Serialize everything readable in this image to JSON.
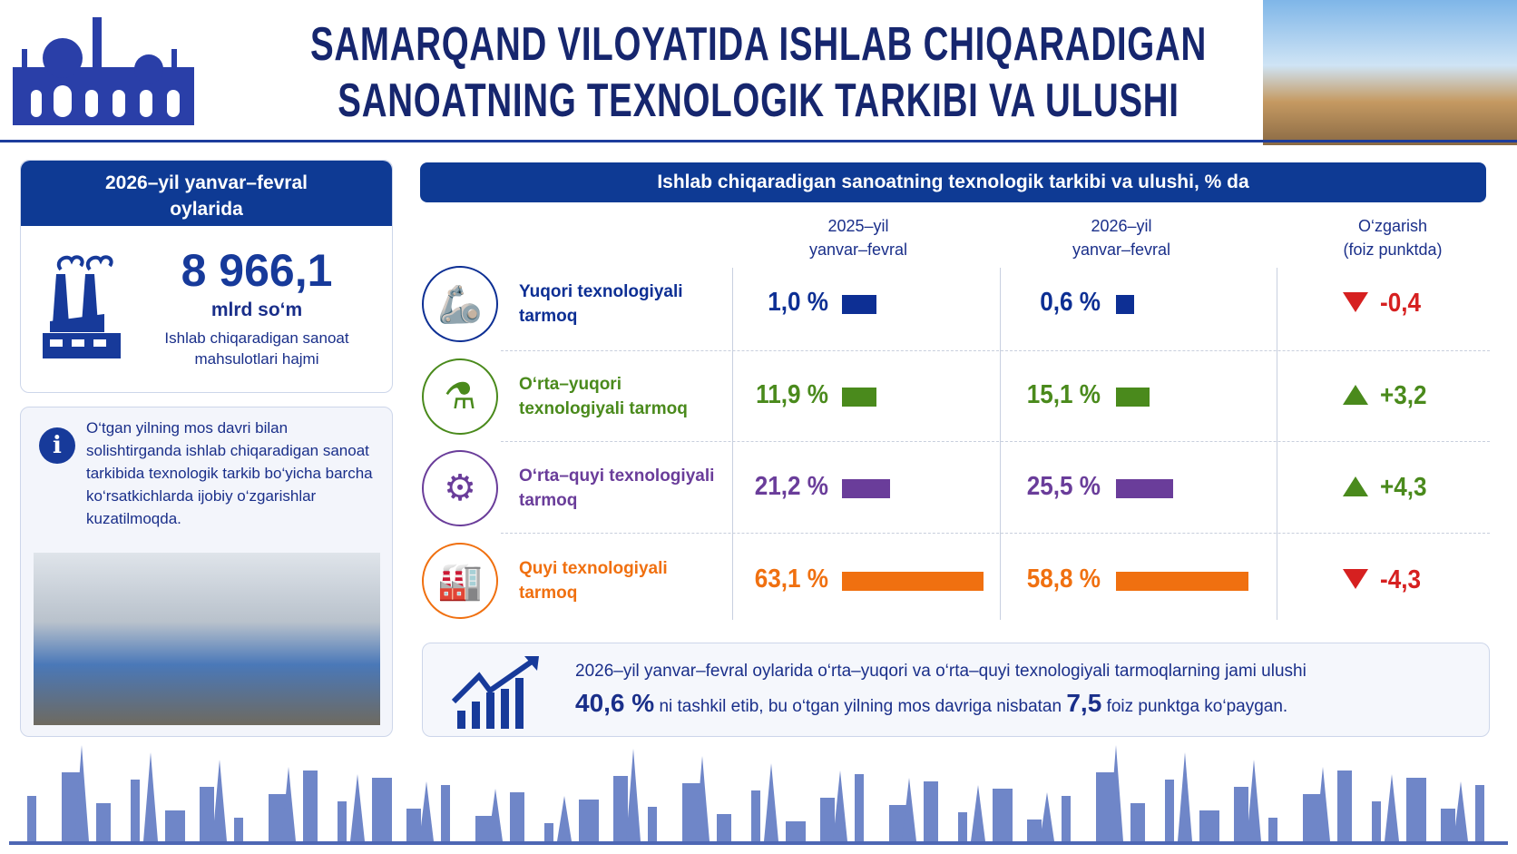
{
  "title": {
    "line1": "SAMARQAND VILOYATIDA ISHLAB CHIQARADIGAN",
    "line2": "SANOATNING TEXNOLOGIK TARKIBI VA ULUSHI"
  },
  "summary": {
    "header": "2026–yil yanvar–fevral oylarida",
    "value": "8 966,1",
    "unit": "mlrd so‘m",
    "caption": "Ishlab chiqaradigan sanoat mahsulotlari hajmi"
  },
  "info": {
    "text": "O‘tgan yilning mos davri bilan solishtirganda ishlab chiqaradigan sanoat tarkibida texnologik tarkib bo‘yicha barcha ko‘rsatkichlarda ijobiy o‘zgarishlar kuzatilmoqda."
  },
  "table": {
    "heading": "Ishlab chiqaradigan sanoatning texnologik tarkibi va ulushi, % da",
    "columns": [
      {
        "l1": "2025–yil",
        "l2": "yanvar–fevral"
      },
      {
        "l1": "2026–yil",
        "l2": "yanvar–fevral"
      },
      {
        "l1": "O‘zgarish",
        "l2": "(foiz punktda)"
      }
    ],
    "rows": [
      {
        "label": "Yuqori texnologiyali tarmoq",
        "v2025": 1.0,
        "t2025": "1,0 %",
        "v2026": 0.6,
        "t2026": "0,6 %",
        "change": "-0,4",
        "dir": "down",
        "color": "#0d2f94",
        "icon": "robot-arm-icon"
      },
      {
        "label": "O‘rta–yuqori texnologiyali tarmoq",
        "v2025": 11.9,
        "t2025": "11,9 %",
        "v2026": 15.1,
        "t2026": "15,1 %",
        "change": "+3,2",
        "dir": "up",
        "color": "#4a8a1c",
        "icon": "flask-gear-icon"
      },
      {
        "label": "O‘rta–quyi texnologiyali tarmoq",
        "v2025": 21.2,
        "t2025": "21,2 %",
        "v2026": 25.5,
        "t2026": "25,5 %",
        "change": "+4,3",
        "dir": "up",
        "color": "#6a3d9a",
        "icon": "gears-icon"
      },
      {
        "label": "Quyi texnologiyali tarmoq",
        "v2025": 63.1,
        "t2025": "63,1 %",
        "v2026": 58.8,
        "t2026": "58,8 %",
        "change": "-4,3",
        "dir": "down",
        "color": "#f07010",
        "icon": "factory-icon"
      }
    ]
  },
  "footer": {
    "line1": "2026–yil yanvar–fevral oylarida o‘rta–yuqori va o‘rta–quyi texnologiyali tarmoqlarning jami ulushi",
    "share": "40,6 %",
    "mid": "ni tashkil etib, bu o‘tgan yilning mos davriga nisbatan",
    "points": "7,5",
    "end": "foiz punktga ko‘paygan."
  },
  "colors": {
    "navy": "#0e3a94",
    "up": "#4a8a1c",
    "down": "#d62020"
  }
}
